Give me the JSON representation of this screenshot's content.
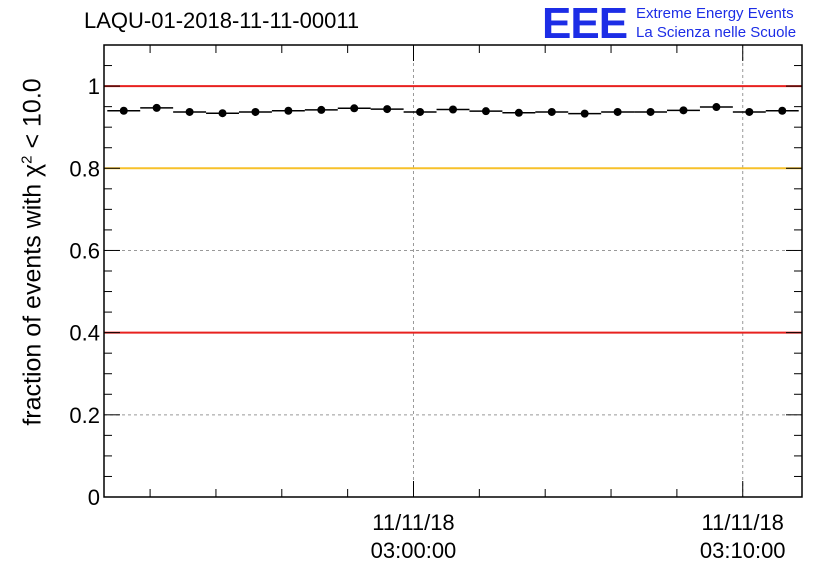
{
  "title": "LAQU-01-2018-11-11-00011",
  "logo": {
    "mark": "EEE",
    "line1": "Extreme Energy Events",
    "line2": "La Scienza nelle Scuole",
    "color": "#1c2de6"
  },
  "chart_data": {
    "type": "scatter",
    "title": "LAQU-01-2018-11-11-00011",
    "ylabel_prefix": "fraction of events with χ",
    "ylabel_sup": "2",
    "ylabel_suffix": " < 10.0",
    "xlabel": "",
    "ylim": [
      0,
      1.1
    ],
    "xlim_minutes": [
      -9.4,
      11.8
    ],
    "y_ticks": [
      {
        "value": 0,
        "label": "0"
      },
      {
        "value": 0.2,
        "label": "0.2"
      },
      {
        "value": 0.4,
        "label": "0.4"
      },
      {
        "value": 0.6,
        "label": "0.6"
      },
      {
        "value": 0.8,
        "label": "0.8"
      },
      {
        "value": 1,
        "label": "1"
      }
    ],
    "x_ticks": [
      {
        "minute": 0,
        "date": "11/11/18",
        "time": "03:00:00"
      },
      {
        "minute": 10,
        "date": "11/11/18",
        "time": "03:10:00"
      }
    ],
    "grid": true,
    "reference_lines": [
      {
        "y": 1.0,
        "color": "#e8211f"
      },
      {
        "y": 0.8,
        "color": "#f7c12a"
      },
      {
        "y": 0.4,
        "color": "#e8211f"
      }
    ],
    "bin_width_minutes": 1,
    "series": [
      {
        "name": "fraction",
        "x_minutes": [
          -8.8,
          -7.8,
          -6.8,
          -5.8,
          -4.8,
          -3.8,
          -2.8,
          -1.8,
          -0.8,
          0.2,
          1.2,
          2.2,
          3.2,
          4.2,
          5.2,
          6.2,
          7.2,
          8.2,
          9.2,
          10.2,
          11.2
        ],
        "values": [
          0.94,
          0.947,
          0.937,
          0.934,
          0.937,
          0.94,
          0.942,
          0.946,
          0.944,
          0.937,
          0.943,
          0.939,
          0.935,
          0.937,
          0.933,
          0.937,
          0.937,
          0.941,
          0.949,
          0.937,
          0.94
        ]
      }
    ]
  }
}
